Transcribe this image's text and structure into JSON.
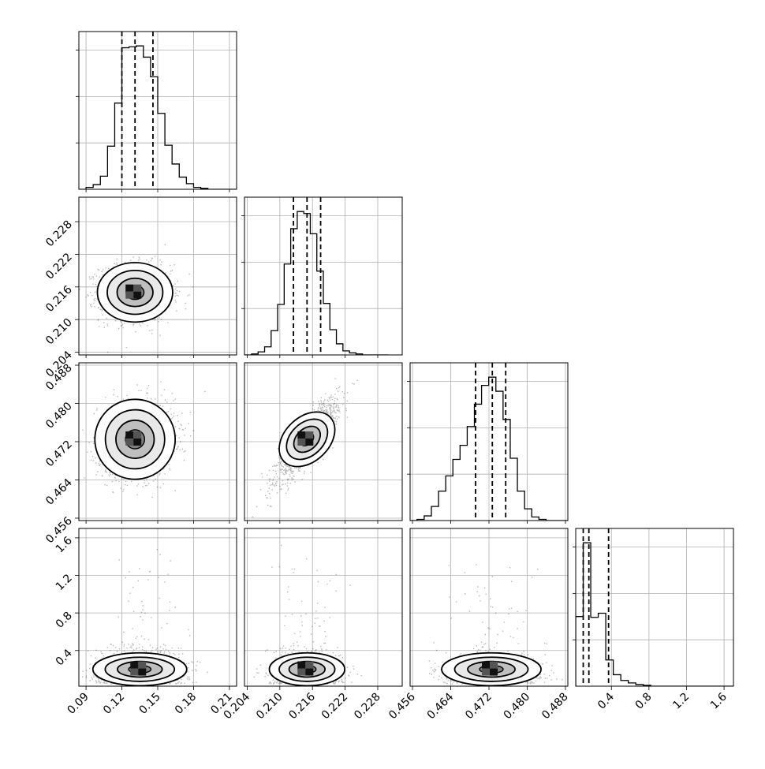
{
  "chart_data": {
    "type": "corner",
    "title": "",
    "grid": true,
    "parameters": [
      {
        "name": "",
        "range": [
          0.084,
          0.216
        ],
        "ticks": [
          "0.09",
          "0.12",
          "0.15",
          "0.18",
          "0.21"
        ],
        "tick_values": [
          0.09,
          0.12,
          0.15,
          0.18,
          0.21
        ],
        "quantiles": [
          0.12,
          0.131,
          0.146
        ]
      },
      {
        "name": "",
        "range": [
          0.2035,
          0.2325
        ],
        "ticks": [
          "0.204",
          "0.210",
          "0.216",
          "0.222",
          "0.228"
        ],
        "tick_values": [
          0.204,
          0.21,
          0.216,
          0.222,
          0.228
        ],
        "quantiles": [
          0.2125,
          0.215,
          0.2175
        ]
      },
      {
        "name": "",
        "range": [
          0.4555,
          0.4885
        ],
        "ticks": [
          "0.456",
          "0.464",
          "0.472",
          "0.480",
          "0.488"
        ],
        "tick_values": [
          0.456,
          0.464,
          0.472,
          0.48,
          0.488
        ],
        "quantiles": [
          0.4692,
          0.4727,
          0.4755
        ]
      },
      {
        "name": "",
        "range": [
          0.02,
          1.7
        ],
        "ticks": [
          "0.4",
          "0.8",
          "1.2",
          "1.6"
        ],
        "tick_values": [
          0.4,
          0.8,
          1.2,
          1.6
        ],
        "quantiles": [
          0.1,
          0.16,
          0.37
        ]
      }
    ],
    "histograms": [
      {
        "parameter": 0,
        "bin_centers": [
          0.087,
          0.093,
          0.099,
          0.105,
          0.111,
          0.117,
          0.123,
          0.129,
          0.135,
          0.141,
          0.147,
          0.153,
          0.159,
          0.165,
          0.171,
          0.177,
          0.183,
          0.189,
          0.195,
          0.201,
          0.207,
          0.213
        ],
        "counts": [
          0,
          2,
          5,
          14,
          46,
          92,
          151,
          152,
          153,
          141,
          120,
          81,
          47,
          27,
          13,
          6,
          2,
          1,
          0,
          0,
          0,
          0
        ]
      },
      {
        "parameter": 1,
        "bin_centers": [
          0.2042,
          0.2054,
          0.2066,
          0.2078,
          0.209,
          0.2102,
          0.2114,
          0.2126,
          0.2138,
          0.215,
          0.2162,
          0.2174,
          0.2186,
          0.2198,
          0.221,
          0.2222,
          0.2234,
          0.2246,
          0.2258,
          0.227,
          0.2282,
          0.2294
        ],
        "counts": [
          0,
          1,
          3,
          8,
          24,
          50,
          90,
          125,
          142,
          140,
          120,
          83,
          51,
          25,
          11,
          4,
          2,
          1,
          0,
          0,
          0,
          0
        ]
      },
      {
        "parameter": 2,
        "bin_centers": [
          0.4562,
          0.4577,
          0.4592,
          0.4607,
          0.4622,
          0.4637,
          0.4652,
          0.4667,
          0.4682,
          0.4697,
          0.4712,
          0.4727,
          0.4742,
          0.4757,
          0.4772,
          0.4787,
          0.4802,
          0.4817,
          0.4832,
          0.4847,
          0.4862,
          0.4877
        ],
        "counts": [
          0,
          1,
          4,
          12,
          25,
          38,
          52,
          64,
          80,
          99,
          115,
          122,
          110,
          86,
          53,
          25,
          10,
          3,
          1,
          0,
          0,
          0
        ]
      },
      {
        "parameter": 3,
        "bin_centers": [
          0.06,
          0.14,
          0.22,
          0.3,
          0.38,
          0.46,
          0.54,
          0.62,
          0.7,
          0.78,
          0.86,
          0.94,
          1.02,
          1.1,
          1.18,
          1.26,
          1.34,
          1.42,
          1.5,
          1.58,
          1.66
        ],
        "counts": [
          85,
          175,
          84,
          89,
          32,
          14,
          7,
          4,
          2,
          1,
          0,
          0,
          0,
          0,
          0,
          0,
          0,
          0,
          0,
          0,
          0
        ]
      }
    ],
    "scatter_pairs": [
      {
        "x_param": 0,
        "y_param": 1,
        "mean": [
          0.131,
          0.215
        ],
        "std": [
          0.015,
          0.0026
        ],
        "corr": 0.0
      },
      {
        "x_param": 0,
        "y_param": 2,
        "mean": [
          0.131,
          0.4725
        ],
        "std": [
          0.016,
          0.004
        ],
        "corr": 0.1
      },
      {
        "x_param": 1,
        "y_param": 2,
        "mean": [
          0.215,
          0.4725
        ],
        "std": [
          0.0028,
          0.0042
        ],
        "corr": 0.85
      },
      {
        "x_param": 0,
        "y_param": 3,
        "mean": [
          0.135,
          0.26
        ],
        "std": [
          0.017,
          0.14
        ],
        "corr": 0.3
      },
      {
        "x_param": 1,
        "y_param": 3,
        "mean": [
          0.215,
          0.24
        ],
        "std": [
          0.003,
          0.12
        ],
        "corr": 0.0
      },
      {
        "x_param": 2,
        "y_param": 3,
        "mean": [
          0.4725,
          0.24
        ],
        "std": [
          0.0045,
          0.12
        ],
        "corr": 0.2
      }
    ]
  }
}
